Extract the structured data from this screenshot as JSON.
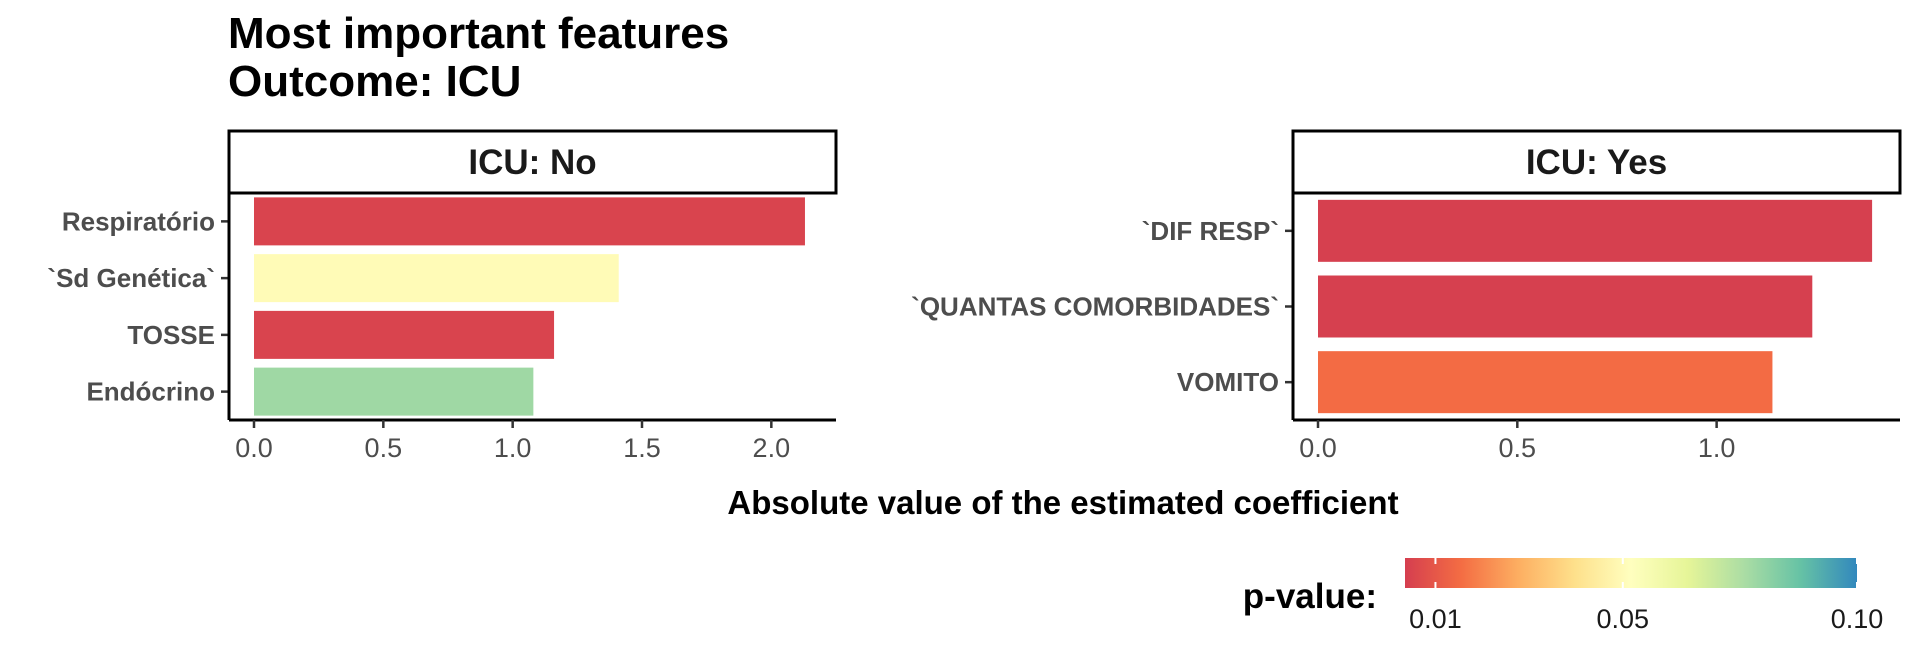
{
  "title_line1": "Most important features",
  "title_line2": "Outcome: ICU",
  "chart_data": [
    {
      "type": "bar",
      "orientation": "horizontal",
      "facet": "ICU: No",
      "categories": [
        "Respiratório",
        "`Sd Genética`",
        "TOSSE",
        "Endócrino"
      ],
      "values": [
        2.13,
        1.41,
        1.16,
        1.08
      ],
      "p_values": [
        0.005,
        0.05,
        0.005,
        0.078
      ],
      "xlim": [
        0,
        2.25
      ],
      "xticks": [
        "0.0",
        "0.5",
        "1.0",
        "1.5",
        "2.0"
      ],
      "xtick_values": [
        0,
        0.5,
        1.0,
        1.5,
        2.0
      ]
    },
    {
      "type": "bar",
      "orientation": "horizontal",
      "facet": "ICU: Yes",
      "categories": [
        "`DIF RESP`",
        "`QUANTAS COMORBIDADES`",
        "VOMITO"
      ],
      "values": [
        1.39,
        1.24,
        1.14
      ],
      "p_values": [
        0.004,
        0.004,
        0.015
      ],
      "xlim": [
        0,
        1.46
      ],
      "xticks": [
        "0.0",
        "0.5",
        "1.0"
      ],
      "xtick_values": [
        0,
        0.5,
        1.0
      ]
    }
  ],
  "xlabel": "Absolute value of the estimated coefficient",
  "legend": {
    "title": "p-value:",
    "ticks": [
      "0.01",
      "0.05",
      "0.10"
    ],
    "tick_values": [
      0.01,
      0.05,
      0.1
    ],
    "range": [
      0.0035,
      0.1
    ],
    "colormap": "Spectral",
    "stops": [
      "#d53e4f",
      "#f46d43",
      "#fdae61",
      "#fee08b",
      "#ffffbf",
      "#e6f598",
      "#abdda4",
      "#66c2a5",
      "#3288bd"
    ]
  },
  "grid": false
}
